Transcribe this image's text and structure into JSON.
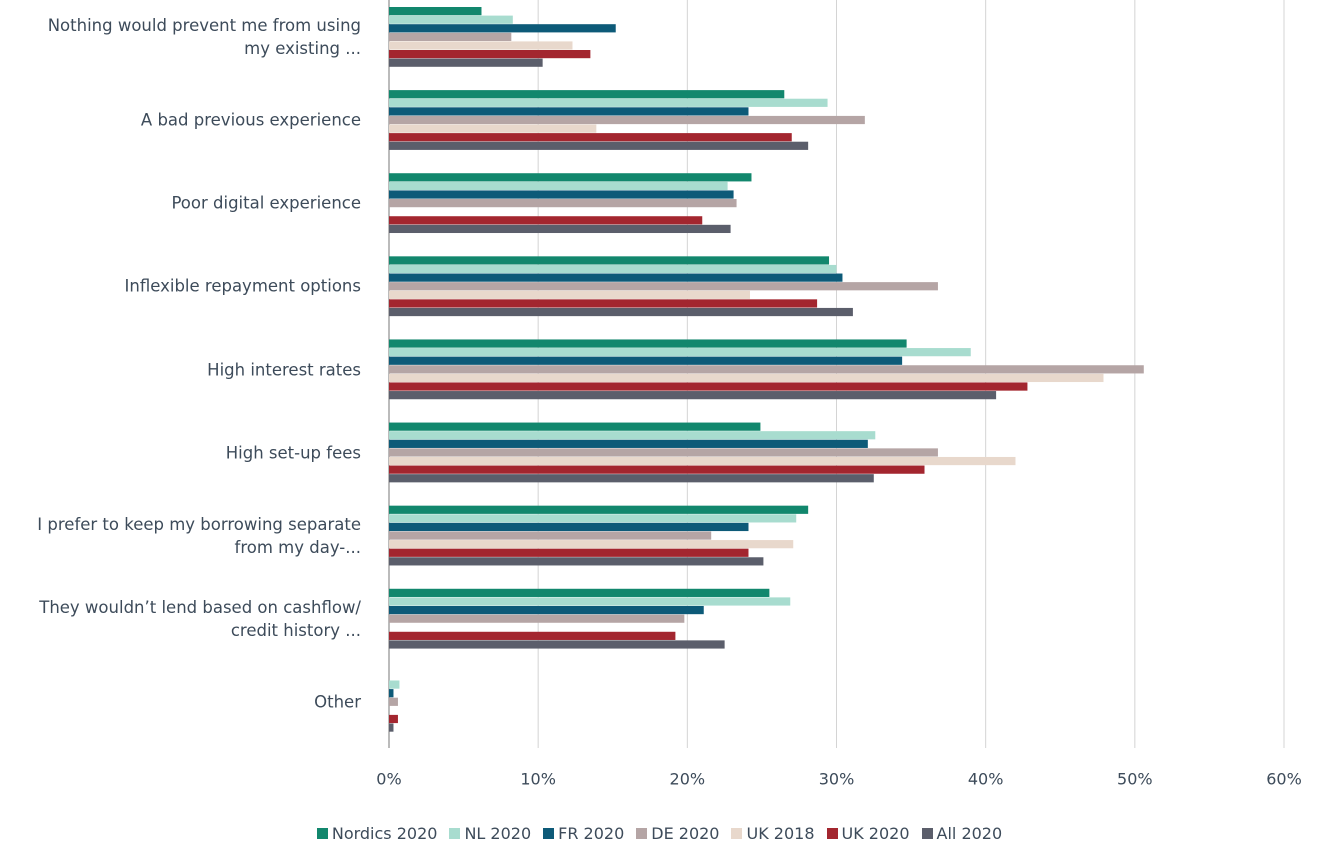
{
  "chart_data": {
    "type": "bar",
    "orientation": "horizontal",
    "categories": [
      "Nothing would prevent me from using\nmy existing ...",
      "A bad previous experience",
      "Poor digital experience",
      "Inflexible repayment options",
      "High interest rates",
      "High set-up fees",
      "I prefer to keep my borrowing separate\nfrom my day-...",
      "They wouldn’t lend based on cashflow/\ncredit history ...",
      "Other"
    ],
    "series": [
      {
        "name": "Nordics 2020",
        "color": "#12876d",
        "values": [
          6.2,
          26.5,
          24.3,
          29.5,
          34.7,
          24.9,
          28.1,
          25.5,
          null
        ]
      },
      {
        "name": "NL 2020",
        "color": "#a8dccf",
        "values": [
          8.3,
          29.4,
          22.7,
          30.0,
          39.0,
          32.6,
          27.3,
          26.9,
          0.7
        ]
      },
      {
        "name": "FR 2020",
        "color": "#0d5a78",
        "values": [
          15.2,
          24.1,
          23.1,
          30.4,
          34.4,
          32.1,
          24.1,
          21.1,
          0.3
        ]
      },
      {
        "name": "DE 2020",
        "color": "#b5a5a5",
        "values": [
          8.2,
          31.9,
          23.3,
          36.8,
          50.6,
          36.8,
          21.6,
          19.8,
          0.6
        ]
      },
      {
        "name": "UK 2018",
        "color": "#e8d8cc",
        "values": [
          12.3,
          13.9,
          null,
          24.2,
          47.9,
          42.0,
          27.1,
          null,
          null
        ]
      },
      {
        "name": "UK 2020",
        "color": "#a3262f",
        "values": [
          13.5,
          27.0,
          21.0,
          28.7,
          42.8,
          35.9,
          24.1,
          19.2,
          0.6
        ]
      },
      {
        "name": "All 2020",
        "color": "#5b5e6b",
        "values": [
          10.3,
          28.1,
          22.9,
          31.1,
          40.7,
          32.5,
          25.1,
          22.5,
          0.3
        ]
      }
    ],
    "xlim": [
      0,
      60
    ],
    "xticks": [
      {
        "value": 0,
        "label": "0%"
      },
      {
        "value": 10,
        "label": "10%"
      },
      {
        "value": 20,
        "label": "20%"
      },
      {
        "value": 30,
        "label": "30%"
      },
      {
        "value": 40,
        "label": "40%"
      },
      {
        "value": 50,
        "label": "50%"
      },
      {
        "value": 60,
        "label": "60%"
      }
    ],
    "grid": true,
    "legend": "bottom"
  }
}
